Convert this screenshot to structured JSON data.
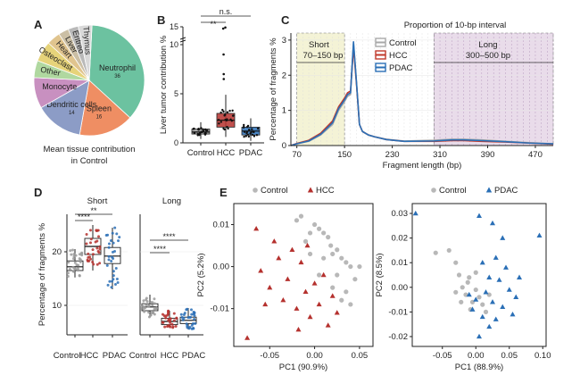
{
  "panels": {
    "A": "A",
    "B": "B",
    "C": "C",
    "D": "D",
    "E": "E"
  },
  "chart_data": [
    {
      "id": "A",
      "type": "pie",
      "title": "Mean tissue contribution",
      "subtitle": "in Control",
      "slices": [
        {
          "label": "Neutrophil",
          "value": 36,
          "color": "#6cc2a0"
        },
        {
          "label": "Spleen",
          "value": 16,
          "color": "#ef8e63"
        },
        {
          "label": "Dendritic cells",
          "value": 14,
          "color": "#8c9cc6"
        },
        {
          "label": "Monocyte",
          "value": 9,
          "color": "#c890c0"
        },
        {
          "label": "Other",
          "value": 5,
          "color": "#b0d8a0"
        },
        {
          "label": "Osteoclast",
          "value": 6,
          "color": "#e6d37a"
        },
        {
          "label": "Heart",
          "value": 4,
          "color": "#e0c48e"
        },
        {
          "label": "Liver",
          "value": 3,
          "color": "#cbbfa5"
        },
        {
          "label": "Eritreo",
          "value": 3,
          "color": "#b9b9b9"
        },
        {
          "label": "Thymus",
          "value": 4,
          "color": "#d9d9d9"
        }
      ],
      "value_labels": {
        "Neutrophil": "36",
        "Spleen": "16",
        "Dendritic cells": "14"
      }
    },
    {
      "id": "B",
      "type": "box",
      "ylabel": "Liver tumor contribution %",
      "categories": [
        "Control",
        "HCC",
        "PDAC"
      ],
      "colors": [
        "#9a9a9a",
        "#b5312e",
        "#2a6fb6"
      ],
      "stats": [
        {
          "q1": 0.9,
          "median": 1.1,
          "q3": 1.4,
          "wlow": 0.4,
          "whigh": 2.1
        },
        {
          "q1": 1.6,
          "median": 2.3,
          "q3": 3.0,
          "wlow": 0.6,
          "whigh": 4.9
        },
        {
          "q1": 0.8,
          "median": 1.2,
          "q3": 1.6,
          "wlow": 0.2,
          "whigh": 2.5
        }
      ],
      "outliers": [
        [],
        [
          6.5,
          7.0,
          9.0,
          14.0,
          14.6
        ],
        []
      ],
      "yticks": [
        0,
        5,
        10,
        15
      ],
      "ybreak": "axis break between 10 and 15",
      "sig": [
        {
          "pair": [
            "Control",
            "HCC"
          ],
          "label": "**"
        },
        {
          "pair": [
            "Control",
            "PDAC"
          ],
          "label": "n.s."
        }
      ]
    },
    {
      "id": "C",
      "type": "line",
      "title": "Proportion of 10-bp interval",
      "xlabel": "Fragment length (bp)",
      "ylabel": "Percentage of fragments %",
      "xticks": [
        70,
        150,
        230,
        310,
        390,
        470
      ],
      "yticks": [
        0,
        1,
        2,
        3
      ],
      "xlim": [
        60,
        500
      ],
      "ylim": [
        0,
        3.2
      ],
      "regions": [
        {
          "label": "Short",
          "range_label": "70–150 bp",
          "from": 70,
          "to": 150,
          "color": "#f4f3d6"
        },
        {
          "label": "Long",
          "range_label": "300–500 bp",
          "from": 300,
          "to": 500,
          "color": "#e9dcea"
        }
      ],
      "legend": [
        {
          "name": "Control",
          "color": "#a8a8a8"
        },
        {
          "name": "HCC",
          "color": "#c0392b"
        },
        {
          "name": "PDAC",
          "color": "#2a6fb6"
        }
      ],
      "series": [
        {
          "name": "Control",
          "x": [
            60,
            70,
            90,
            110,
            130,
            140,
            150,
            155,
            160,
            165,
            170,
            175,
            180,
            190,
            200,
            220,
            250,
            300,
            330,
            350,
            380,
            420,
            460,
            500
          ],
          "y": [
            0,
            0.05,
            0.12,
            0.3,
            0.6,
            1.0,
            1.25,
            1.4,
            1.45,
            2.9,
            1.8,
            0.6,
            0.4,
            0.3,
            0.25,
            0.18,
            0.13,
            0.15,
            0.18,
            0.18,
            0.16,
            0.12,
            0.08,
            0.05
          ]
        },
        {
          "name": "HCC",
          "x": [
            60,
            70,
            90,
            110,
            130,
            140,
            150,
            155,
            160,
            165,
            170,
            175,
            180,
            190,
            200,
            220,
            250,
            300,
            330,
            350,
            380,
            420,
            460,
            500
          ],
          "y": [
            0,
            0.06,
            0.15,
            0.35,
            0.7,
            1.1,
            1.35,
            1.5,
            1.55,
            2.8,
            1.75,
            0.6,
            0.4,
            0.3,
            0.25,
            0.17,
            0.12,
            0.12,
            0.14,
            0.14,
            0.12,
            0.1,
            0.07,
            0.04
          ]
        },
        {
          "name": "PDAC",
          "x": [
            60,
            70,
            90,
            110,
            130,
            140,
            150,
            155,
            160,
            165,
            170,
            175,
            180,
            190,
            200,
            220,
            250,
            300,
            330,
            350,
            380,
            420,
            460,
            500
          ],
          "y": [
            0,
            0.05,
            0.13,
            0.32,
            0.65,
            1.05,
            1.3,
            1.45,
            1.5,
            2.95,
            1.8,
            0.6,
            0.4,
            0.3,
            0.25,
            0.17,
            0.12,
            0.13,
            0.16,
            0.16,
            0.14,
            0.11,
            0.07,
            0.05
          ]
        }
      ]
    },
    {
      "id": "D",
      "type": "box",
      "ylabel": "Percentage of fragments %",
      "categories": [
        "Control",
        "HCC",
        "PDAC"
      ],
      "colors": [
        "#9a9a9a",
        "#b5312e",
        "#2a6fb6"
      ],
      "subplots": [
        {
          "title": "Short",
          "ylim": [
            4.5,
            27
          ],
          "stats": [
            {
              "q1": 16.5,
              "median": 17.2,
              "q3": 18.3,
              "wlow": 15.2,
              "whigh": 20.5
            },
            {
              "q1": 19.5,
              "median": 21.0,
              "q3": 22.5,
              "wlow": 16.5,
              "whigh": 25.0
            },
            {
              "q1": 17.8,
              "median": 19.2,
              "q3": 20.8,
              "wlow": 13.0,
              "whigh": 24.5
            }
          ],
          "sig": [
            {
              "pair": [
                "Control",
                "HCC"
              ],
              "label": "****"
            },
            {
              "pair": [
                "Control",
                "PDAC"
              ],
              "label": "**"
            }
          ]
        },
        {
          "title": "Long",
          "ylim": [
            4.5,
            27
          ],
          "stats": [
            {
              "q1": 9.0,
              "median": 9.7,
              "q3": 10.3,
              "wlow": 7.8,
              "whigh": 12.0
            },
            {
              "q1": 6.4,
              "median": 7.0,
              "q3": 7.6,
              "wlow": 5.8,
              "whigh": 9.0
            },
            {
              "q1": 6.6,
              "median": 7.2,
              "q3": 7.8,
              "wlow": 5.5,
              "whigh": 9.5
            }
          ],
          "sig": [
            {
              "pair": [
                "Control",
                "HCC"
              ],
              "label": "****"
            },
            {
              "pair": [
                "Control",
                "PDAC"
              ],
              "label": "****"
            }
          ]
        }
      ],
      "yticks": [
        10,
        20
      ]
    },
    {
      "id": "E",
      "type": "scatter",
      "subplots": [
        {
          "xlabel": "PC1 (90.9%)",
          "ylabel": "PC2 (5.2%)",
          "xlim": [
            -0.09,
            0.065
          ],
          "ylim": [
            -0.019,
            0.015
          ],
          "xticks": [
            -0.05,
            0.0,
            0.05
          ],
          "xticklabels": [
            "-0.05",
            "0.00",
            "0.05"
          ],
          "yticks": [
            0.01,
            0.0,
            -0.01
          ],
          "yticklabels": [
            "0.01",
            "0.00",
            "-0.01"
          ],
          "legend": [
            {
              "name": "Control",
              "color": "#b8b8b8",
              "marker": "circle"
            },
            {
              "name": "HCC",
              "color": "#b5312e",
              "marker": "triangle"
            }
          ],
          "groups": [
            {
              "name": "Control",
              "marker": "circle",
              "color": "#b8b8b8",
              "points": [
                [
                  -0.02,
                  0.011
                ],
                [
                  -0.015,
                  0.012
                ],
                [
                  -0.01,
                  0.006
                ],
                [
                  0,
                  0.01
                ],
                [
                  0.005,
                  0.009
                ],
                [
                  0.01,
                  0.008
                ],
                [
                  0.015,
                  0.007
                ],
                [
                  0.018,
                  0.005
                ],
                [
                  0.02,
                  0.003
                ],
                [
                  0.025,
                  0.004
                ],
                [
                  0.03,
                  0.002
                ],
                [
                  0.035,
                  0.001
                ],
                [
                  0.04,
                  0.0
                ],
                [
                  0.045,
                  -0.003
                ],
                [
                  0.01,
                  0.002
                ],
                [
                  0.005,
                  -0.002
                ],
                [
                  -0.005,
                  0.003
                ],
                [
                  0.02,
                  -0.005
                ],
                [
                  0.03,
                  -0.008
                ],
                [
                  0.04,
                  -0.009
                ],
                [
                  0.05,
                  0.0
                ],
                [
                  -0.005,
                  0.008
                ],
                [
                  0.025,
                  -0.002
                ],
                [
                  0.035,
                  -0.006
                ]
              ]
            },
            {
              "name": "HCC",
              "marker": "triangle",
              "color": "#b5312e",
              "points": [
                [
                  -0.065,
                  0.009
                ],
                [
                  -0.06,
                  -0.001
                ],
                [
                  -0.05,
                  -0.005
                ],
                [
                  -0.045,
                  0.006
                ],
                [
                  -0.04,
                  0.002
                ],
                [
                  -0.035,
                  -0.008
                ],
                [
                  -0.03,
                  -0.003
                ],
                [
                  -0.025,
                  0.004
                ],
                [
                  -0.02,
                  -0.01
                ],
                [
                  -0.015,
                  0.001
                ],
                [
                  -0.01,
                  -0.006
                ],
                [
                  -0.005,
                  -0.012
                ],
                [
                  0.0,
                  -0.004
                ],
                [
                  0.005,
                  -0.009
                ],
                [
                  0.01,
                  -0.002
                ],
                [
                  0.015,
                  -0.014
                ],
                [
                  0.02,
                  -0.007
                ],
                [
                  -0.055,
                  -0.009
                ],
                [
                  -0.008,
                  0.005
                ],
                [
                  -0.075,
                  -0.017
                ],
                [
                  0.025,
                  -0.011
                ],
                [
                  -0.018,
                  -0.015
                ]
              ]
            }
          ]
        },
        {
          "xlabel": "PC1 (88.9%)",
          "ylabel": "PC2 (8.5%)",
          "xlim": [
            -0.095,
            0.105
          ],
          "ylim": [
            -0.024,
            0.034
          ],
          "xticks": [
            -0.05,
            0.0,
            0.05,
            0.1
          ],
          "xticklabels": [
            "-0.05",
            "0.00",
            "0.05",
            "0.10"
          ],
          "yticks": [
            0.03,
            0.02,
            0.01,
            0.0,
            -0.01,
            -0.02
          ],
          "yticklabels": [
            "0.03",
            "0.02",
            "0.01",
            "0.00",
            "-0.01",
            "-0.02"
          ],
          "legend": [
            {
              "name": "Control",
              "color": "#b8b8b8",
              "marker": "circle"
            },
            {
              "name": "PDAC",
              "color": "#2a6fb6",
              "marker": "triangle"
            }
          ],
          "groups": [
            {
              "name": "Control",
              "marker": "circle",
              "color": "#b8b8b8",
              "points": [
                [
                  -0.06,
                  0.014
                ],
                [
                  -0.04,
                  0.015
                ],
                [
                  -0.03,
                  0.01
                ],
                [
                  -0.025,
                  0.005
                ],
                [
                  -0.02,
                  0.0
                ],
                [
                  -0.015,
                  -0.003
                ],
                [
                  -0.01,
                  0.004
                ],
                [
                  -0.005,
                  -0.006
                ],
                [
                  0.0,
                  -0.001
                ],
                [
                  0.005,
                  -0.004
                ],
                [
                  -0.012,
                  0.002
                ],
                [
                  0.01,
                  -0.007
                ],
                [
                  -0.03,
                  -0.002
                ],
                [
                  0.015,
                  -0.01
                ],
                [
                  -0.008,
                  -0.009
                ],
                [
                  0.0,
                  0.006
                ],
                [
                  0.02,
                  -0.003
                ],
                [
                  -0.022,
                  -0.006
                ]
              ]
            },
            {
              "name": "PDAC",
              "marker": "triangle",
              "color": "#2a6fb6",
              "points": [
                [
                  -0.09,
                  0.03
                ],
                [
                  0.005,
                  0.029
                ],
                [
                  0.025,
                  0.026
                ],
                [
                  0.04,
                  0.02
                ],
                [
                  0.095,
                  0.021
                ],
                [
                  0.03,
                  0.012
                ],
                [
                  0.01,
                  0.01
                ],
                [
                  0.045,
                  0.008
                ],
                [
                  0.02,
                  0.004
                ],
                [
                  0.035,
                  0.003
                ],
                [
                  0.015,
                  -0.002
                ],
                [
                  0.05,
                  -0.001
                ],
                [
                  0.0,
                  -0.005
                ],
                [
                  0.025,
                  -0.006
                ],
                [
                  0.04,
                  -0.008
                ],
                [
                  0.06,
                  -0.004
                ],
                [
                  -0.005,
                  -0.009
                ],
                [
                  0.01,
                  -0.012
                ],
                [
                  0.03,
                  -0.013
                ],
                [
                  0.02,
                  -0.016
                ],
                [
                  0.005,
                  -0.02
                ],
                [
                  0.055,
                  -0.011
                ],
                [
                  -0.01,
                  -0.003
                ],
                [
                  0.065,
                  0.004
                ]
              ]
            }
          ]
        }
      ]
    }
  ]
}
